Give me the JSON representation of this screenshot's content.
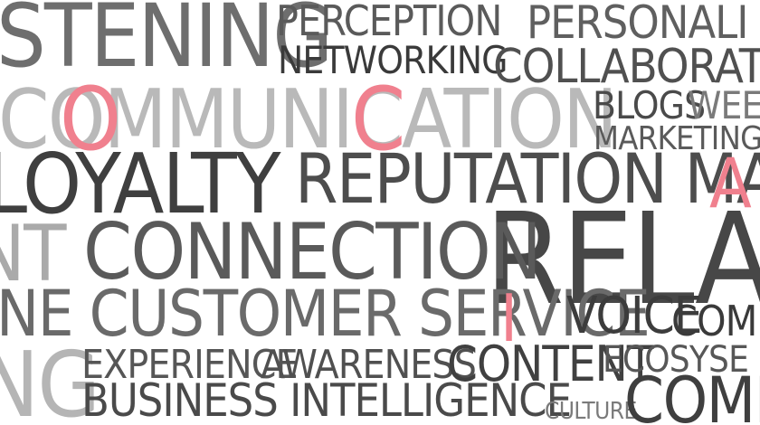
{
  "words": [
    {
      "id": "stening",
      "text": "STENING",
      "color": "#6e6e6e"
    },
    {
      "id": "perception",
      "text": "PERCEPTION",
      "color": "#5a5a5a"
    },
    {
      "id": "personali",
      "text": "PERSONALI",
      "color": "#5f5f5f"
    },
    {
      "id": "networking",
      "text": "NETWORKING",
      "color": "#3a3a3a"
    },
    {
      "id": "collaboratio",
      "text": "COLLABORATIO",
      "color": "#505050"
    },
    {
      "id": "communication",
      "text": "COMMUNICATION",
      "color": "#b9b9b9"
    },
    {
      "id": "blogs",
      "text": "BLOGS",
      "color": "#4a4a4a"
    },
    {
      "id": "wee",
      "text": "WEE",
      "color": "#7a7a7a"
    },
    {
      "id": "marketing",
      "text": "MARKETING",
      "color": "#5a5a5a"
    },
    {
      "id": "loyalty",
      "text": "LOYALTY",
      "color": "#3f3f3f"
    },
    {
      "id": "reputation",
      "text": "REPUTATION MA",
      "color": "#4d4d4d"
    },
    {
      "id": "relati",
      "text": "RELATI",
      "color": "#474747"
    },
    {
      "id": "connection",
      "text": "CONNECTION",
      "color": "#5a5a5a"
    },
    {
      "id": "nt",
      "text": "NT",
      "color": "#aaaaaa"
    },
    {
      "id": "customer_service",
      "text": "NE CUSTOMER SERVICE",
      "color": "#6a6a6a"
    },
    {
      "id": "voice",
      "text": "VOICE",
      "color": "#3c3c3c"
    },
    {
      "id": "comm_small",
      "text": "COMM",
      "color": "#3a3a3a"
    },
    {
      "id": "ng",
      "text": "NG",
      "color": "#b5b5b5"
    },
    {
      "id": "experience",
      "text": "EXPERIENCE",
      "color": "#565656"
    },
    {
      "id": "awareness",
      "text": "AWARENESS",
      "color": "#505050"
    },
    {
      "id": "content",
      "text": "CONTENT",
      "color": "#404040"
    },
    {
      "id": "ecosyse",
      "text": "ECOSYSE",
      "color": "#575757"
    },
    {
      "id": "business",
      "text": "BUSINESS INTELLIGENCE",
      "color": "#4a4a4a"
    },
    {
      "id": "culture",
      "text": "CULTURE",
      "color": "#7a7a7a"
    },
    {
      "id": "comm_big",
      "text": "COMM",
      "color": "#3f3f3f"
    }
  ],
  "highlights": [
    "O",
    "C",
    "A",
    "I"
  ],
  "accent": "#f0808e"
}
